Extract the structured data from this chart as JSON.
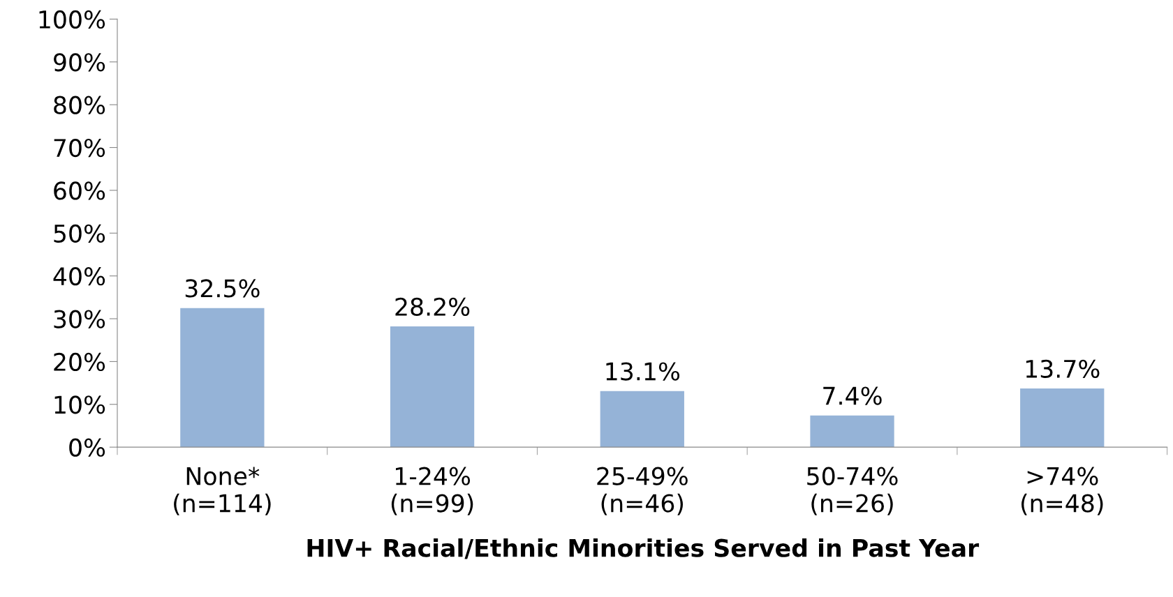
{
  "chart_data": {
    "type": "bar",
    "xlabel": "HIV+ Racial/Ethnic Minorities Served in Past Year",
    "categories": [
      "None*\n(n=114)",
      "1-24%\n(n=99)",
      "25-49%\n(n=46)",
      "50-74%\n(n=26)",
      ">74%\n(n=48)"
    ],
    "values": [
      32.5,
      28.2,
      13.1,
      7.4,
      13.7
    ],
    "value_labels": [
      "32.5%",
      "28.2%",
      "13.1%",
      "7.4%",
      "13.7%"
    ],
    "color": "#95b3d7",
    "ylim": [
      0,
      100
    ],
    "yticks": [
      {
        "value": 0,
        "label": "0%"
      },
      {
        "value": 10,
        "label": "10%"
      },
      {
        "value": 20,
        "label": "20%"
      },
      {
        "value": 30,
        "label": "30%"
      },
      {
        "value": 40,
        "label": "40%"
      },
      {
        "value": 50,
        "label": "50%"
      },
      {
        "value": 60,
        "label": "60%"
      },
      {
        "value": 70,
        "label": "70%"
      },
      {
        "value": 80,
        "label": "80%"
      },
      {
        "value": 90,
        "label": "90%"
      },
      {
        "value": 100,
        "label": "100%"
      }
    ],
    "grid": false
  }
}
